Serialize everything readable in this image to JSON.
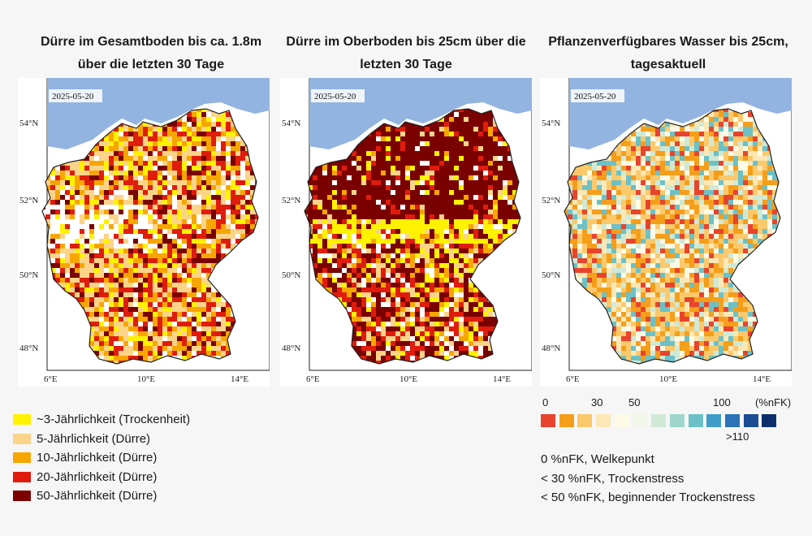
{
  "titles": {
    "t1_line1": "Dürre im Gesamtboden bis ca. 1.8m",
    "t1_line2": "über die letzten 30 Tage",
    "t2_line1": "Dürre im Oberboden bis 25cm über die",
    "t2_line2": "letzten 30 Tage",
    "t3_line1": "Pflanzenverfügbares Wasser bis 25cm,",
    "t3_line2": "tagesaktuell"
  },
  "maps": {
    "date": "2025-05-20",
    "lat_ticks": [
      "54°N",
      "52°N",
      "50°N",
      "48°N"
    ],
    "lon_ticks": [
      "6°E",
      "10°E",
      "14°E"
    ],
    "colors": {
      "sea": "#93b4e0",
      "land_outside": "#ffffff",
      "border": "#222222"
    }
  },
  "legend_left": {
    "items": [
      {
        "label": "~3-Jährlichkeit (Trockenheit)",
        "color": "#fff200"
      },
      {
        "label": "5-Jährlichkeit (Dürre)",
        "color": "#fbd48a"
      },
      {
        "label": "10-Jährlichkeit (Dürre)",
        "color": "#f7a600"
      },
      {
        "label": "20-Jährlichkeit (Dürre)",
        "color": "#e01c0d"
      },
      {
        "label": "50-Jährlichkeit (Dürre)",
        "color": "#7a0000"
      }
    ]
  },
  "scale": {
    "lbl_0": "0",
    "lbl_30": "30",
    "lbl_50": "50",
    "lbl_100": "100",
    "unit": "(%nFK)",
    "gt": ">110",
    "colors": [
      "#e8432d",
      "#f59e1a",
      "#fbc96b",
      "#fbe8b6",
      "#fdfbe6",
      "#f0f7e8",
      "#cfe9d6",
      "#9fd6cc",
      "#6cc1c6",
      "#3f9cc8",
      "#2a73b6",
      "#1a4d93",
      "#0c2f6b"
    ]
  },
  "notes": {
    "n1": "0 %nFK, Welkepunkt",
    "n2": "< 30 %nFK, Trockenstress",
    "n3": "< 50 %nFK, beginnender Trockenstress"
  },
  "map_palettes": {
    "m1": [
      "#fff200",
      "#fbd48a",
      "#f7a600",
      "#f7a600",
      "#e01c0d",
      "#e01c0d",
      "#7a0000",
      "#ffffff",
      "#fbd48a"
    ],
    "m2": [
      "#7a0000",
      "#7a0000",
      "#e01c0d",
      "#f7a600",
      "#fbd48a",
      "#fff200",
      "#ffffff",
      "#7a0000",
      "#e01c0d"
    ],
    "m3": [
      "#f59e1a",
      "#fbc96b",
      "#fbe8b6",
      "#e8432d",
      "#f59e1a",
      "#fdfbe6",
      "#cfe9d6",
      "#6cc1c6",
      "#fbc96b"
    ]
  }
}
